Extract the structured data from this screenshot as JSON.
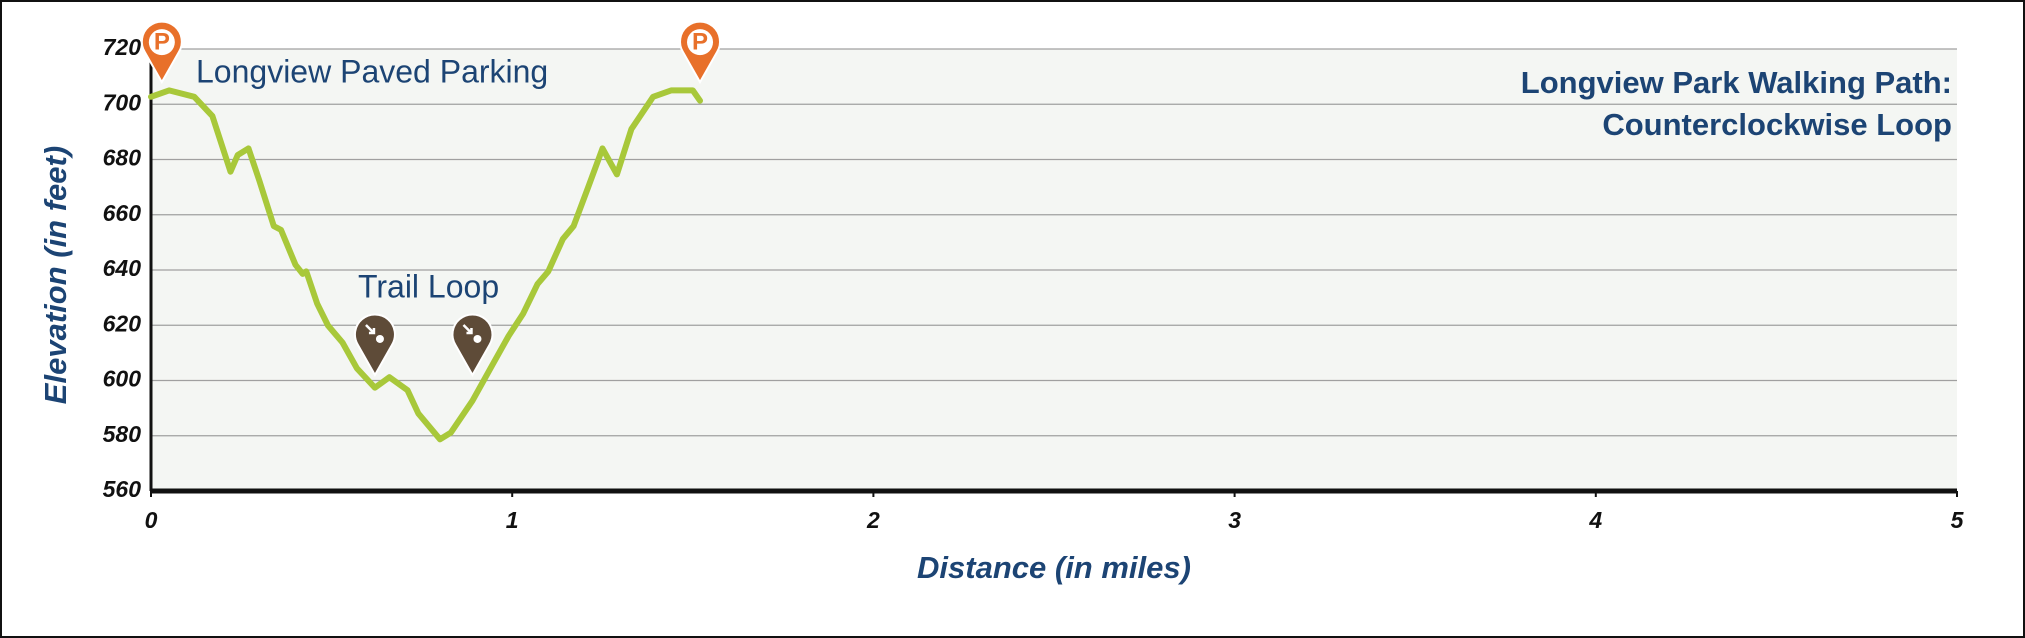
{
  "chart_data": {
    "type": "line",
    "title": [
      "Longview Park Walking Path:",
      "Counterclockwise Loop"
    ],
    "x_label": "Distance (in miles)",
    "y_label": "Elevation (in feet)",
    "annotations": [
      "Longview Paved Parking",
      "Trail Loop"
    ],
    "xlim": [
      0,
      5
    ],
    "xticks": [
      0,
      1,
      2,
      3,
      4,
      5
    ],
    "ylim": [
      560,
      720
    ],
    "yticks": [
      560,
      580,
      600,
      620,
      640,
      660,
      680,
      700,
      720
    ],
    "grid": true,
    "series": [
      {
        "color": "#a8c83a",
        "x": [
          0,
          0.05,
          0.12,
          0.17,
          0.22,
          0.24,
          0.27,
          0.3,
          0.34,
          0.36,
          0.4,
          0.42,
          0.43,
          0.46,
          0.49,
          0.53,
          0.57,
          0.62,
          0.66,
          0.71,
          0.74,
          0.8,
          0.83,
          0.89,
          0.94,
          0.99,
          1.03,
          1.07,
          1.1,
          1.14,
          1.17,
          1.21,
          1.25,
          1.29,
          1.33,
          1.39,
          1.44,
          1.5,
          1.52
        ],
        "values": [
          702.7,
          705,
          702.7,
          695.7,
          675.6,
          681.6,
          684,
          672.3,
          655.9,
          654.5,
          641.9,
          638.6,
          639.5,
          627.8,
          619.9,
          613.8,
          604.4,
          597.4,
          601.2,
          596.5,
          588.1,
          578.7,
          581.1,
          592.7,
          604.4,
          616.1,
          624.1,
          634.9,
          639.5,
          651.2,
          655.9,
          669.9,
          684,
          674.6,
          691,
          702.7,
          705,
          705,
          701.3
        ]
      }
    ],
    "parking_markers": [
      {
        "label": "P",
        "x": 0.03,
        "y": 708
      },
      {
        "label": "P",
        "x": 1.52,
        "y": 708
      }
    ],
    "trail_markers": [
      {
        "x": 0.62,
        "y": 602
      },
      {
        "x": 0.89,
        "y": 602
      }
    ]
  }
}
